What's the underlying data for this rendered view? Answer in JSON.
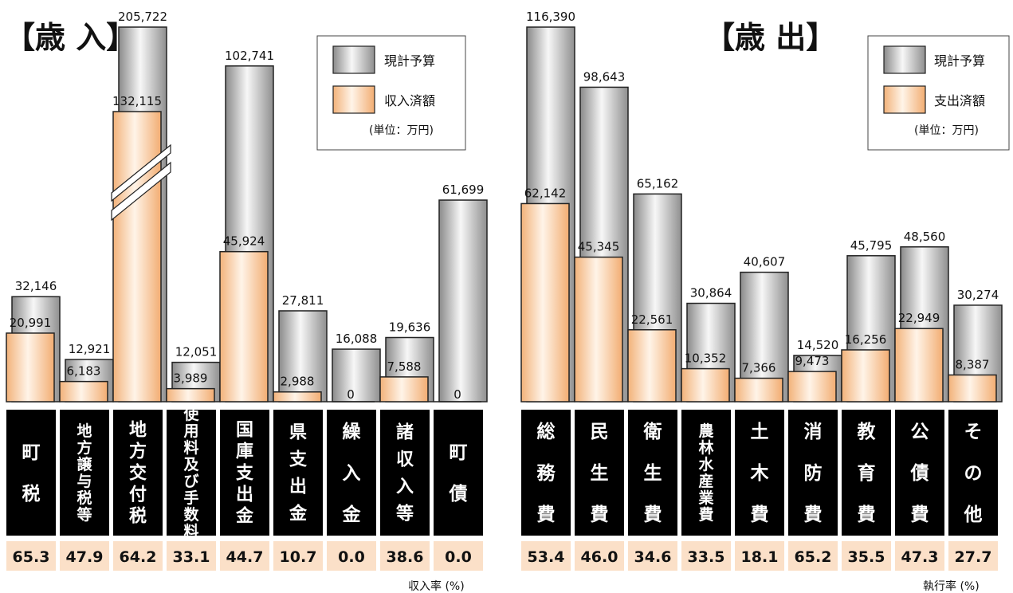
{
  "colors": {
    "budget_light": "#f5f5f5",
    "budget_dark": "#8a8a8a",
    "actual_light": "#fff3e6",
    "actual_dark": "#f2b27a",
    "label_bg": "#000000",
    "rate_bg": "#fbe0c8"
  },
  "chart_data": [
    {
      "type": "bar",
      "title": "【歳 入】",
      "legend": [
        "現計予算",
        "収入済額"
      ],
      "unit": "(単位：万円)",
      "rate_label": "収入率 (%)",
      "categories": [
        "町税",
        "地方譲与税等",
        "地方交付税",
        "使用料及び手数料",
        "国庫支出金",
        "県支出金",
        "繰入金",
        "諸収入等",
        "町債"
      ],
      "series": [
        {
          "name": "現計予算",
          "values": [
            32146,
            12921,
            205722,
            12051,
            102741,
            27811,
            16088,
            19636,
            61699
          ]
        },
        {
          "name": "収入済額",
          "values": [
            20991,
            6183,
            132115,
            3989,
            45924,
            2988,
            0,
            7588,
            0
          ]
        }
      ],
      "rates": [
        65.3,
        47.9,
        64.2,
        33.1,
        44.7,
        10.7,
        0.0,
        38.6,
        0.0
      ]
    },
    {
      "type": "bar",
      "title": "【歳 出】",
      "legend": [
        "現計予算",
        "支出済額"
      ],
      "unit": "(単位：万円)",
      "rate_label": "執行率 (%)",
      "categories": [
        "総務費",
        "民生費",
        "衛生費",
        "農林水産業費",
        "土木費",
        "消防費",
        "教育費",
        "公債費",
        "その他"
      ],
      "series": [
        {
          "name": "現計予算",
          "values": [
            116390,
            98643,
            65162,
            30864,
            40607,
            14520,
            45795,
            48560,
            30274
          ]
        },
        {
          "name": "支出済額",
          "values": [
            62142,
            45345,
            22561,
            10352,
            7366,
            9473,
            16256,
            22949,
            8387
          ]
        }
      ],
      "rates": [
        53.4,
        46.0,
        34.6,
        33.5,
        18.1,
        65.2,
        35.5,
        47.3,
        27.7
      ]
    }
  ]
}
